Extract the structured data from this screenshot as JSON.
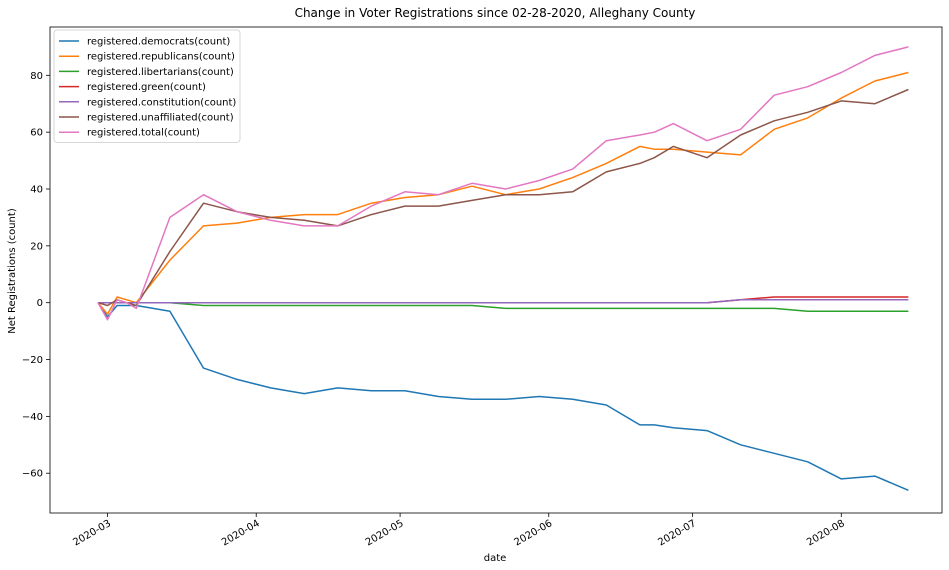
{
  "chart_data": {
    "type": "line",
    "title": "Change in Voter Registrations since 02-28-2020, Alleghany County",
    "xlabel": "date",
    "ylabel": "Net Registrations (count)",
    "xlim": [
      "2020-02-18",
      "2020-08-22"
    ],
    "ylim": [
      -74,
      97
    ],
    "x_ticks": [
      "2020-03-01",
      "2020-04-01",
      "2020-05-01",
      "2020-06-01",
      "2020-07-01",
      "2020-08-01"
    ],
    "x_tick_labels": [
      "2020-03",
      "2020-04",
      "2020-05",
      "2020-06",
      "2020-07",
      "2020-08"
    ],
    "y_ticks": [
      -60,
      -40,
      -20,
      0,
      20,
      40,
      60,
      80
    ],
    "y_tick_labels": [
      "−60",
      "−40",
      "−20",
      "0",
      "20",
      "40",
      "60",
      "80"
    ],
    "legend_position": "upper-left",
    "grid": false,
    "x": [
      "2020-02-28",
      "2020-03-01",
      "2020-03-03",
      "2020-03-05",
      "2020-03-07",
      "2020-03-14",
      "2020-03-21",
      "2020-03-28",
      "2020-04-04",
      "2020-04-11",
      "2020-04-18",
      "2020-04-25",
      "2020-05-02",
      "2020-05-09",
      "2020-05-16",
      "2020-05-23",
      "2020-05-30",
      "2020-06-06",
      "2020-06-13",
      "2020-06-20",
      "2020-06-23",
      "2020-06-27",
      "2020-07-04",
      "2020-07-11",
      "2020-07-18",
      "2020-07-25",
      "2020-08-01",
      "2020-08-08",
      "2020-08-15"
    ],
    "series": [
      {
        "name": "registered.democrats(count)",
        "color": "#1f77b4",
        "values": [
          0,
          -5,
          -1,
          -1,
          -1,
          -3,
          -23,
          -27,
          -30,
          -32,
          -30,
          -31,
          -31,
          -33,
          -34,
          -34,
          -33,
          -34,
          -36,
          -43,
          -43,
          -44,
          -45,
          -50,
          -53,
          -56,
          -62,
          -61,
          -66
        ]
      },
      {
        "name": "registered.republicans(count)",
        "color": "#ff7f0e",
        "values": [
          0,
          -4,
          2,
          1,
          0,
          15,
          27,
          28,
          30,
          31,
          31,
          35,
          37,
          38,
          41,
          38,
          40,
          44,
          49,
          55,
          54,
          54,
          53,
          52,
          61,
          65,
          72,
          78,
          81
        ]
      },
      {
        "name": "registered.libertarians(count)",
        "color": "#2ca02c",
        "values": [
          0,
          0,
          0,
          0,
          0,
          0,
          -1,
          -1,
          -1,
          -1,
          -1,
          -1,
          -1,
          -1,
          -1,
          -2,
          -2,
          -2,
          -2,
          -2,
          -2,
          -2,
          -2,
          -2,
          -2,
          -3,
          -3,
          -3,
          -3
        ]
      },
      {
        "name": "registered.green(count)",
        "color": "#d62728",
        "values": [
          0,
          0,
          0,
          0,
          0,
          0,
          0,
          0,
          0,
          0,
          0,
          0,
          0,
          0,
          0,
          0,
          0,
          0,
          0,
          0,
          0,
          0,
          0,
          1,
          2,
          2,
          2,
          2,
          2
        ]
      },
      {
        "name": "registered.constitution(count)",
        "color": "#9467bd",
        "values": [
          0,
          0,
          0,
          0,
          0,
          0,
          0,
          0,
          0,
          0,
          0,
          0,
          0,
          0,
          0,
          0,
          0,
          0,
          0,
          0,
          0,
          0,
          0,
          1,
          1,
          1,
          1,
          1,
          1
        ]
      },
      {
        "name": "registered.unaffiliated(count)",
        "color": "#8c564b",
        "values": [
          0,
          -1,
          1,
          0,
          -1,
          18,
          35,
          32,
          30,
          29,
          27,
          31,
          34,
          34,
          36,
          38,
          38,
          39,
          46,
          49,
          51,
          55,
          51,
          59,
          64,
          67,
          71,
          70,
          75
        ]
      },
      {
        "name": "registered.total(count)",
        "color": "#e377c2",
        "values": [
          0,
          -6,
          1,
          0,
          -2,
          30,
          38,
          32,
          29,
          27,
          27,
          34,
          39,
          38,
          42,
          40,
          43,
          47,
          57,
          59,
          60,
          63,
          57,
          61,
          73,
          76,
          81,
          87,
          90
        ]
      }
    ]
  }
}
